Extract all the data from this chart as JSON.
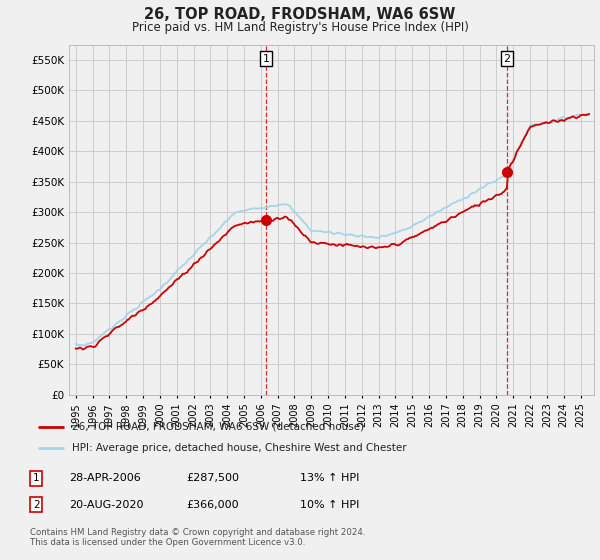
{
  "title": "26, TOP ROAD, FRODSHAM, WA6 6SW",
  "subtitle": "Price paid vs. HM Land Registry's House Price Index (HPI)",
  "legend_line1": "26, TOP ROAD, FRODSHAM, WA6 6SW (detached house)",
  "legend_line2": "HPI: Average price, detached house, Cheshire West and Chester",
  "annotation1_date": "28-APR-2006",
  "annotation1_price": "£287,500",
  "annotation1_hpi": "13% ↑ HPI",
  "annotation2_date": "20-AUG-2020",
  "annotation2_price": "£366,000",
  "annotation2_hpi": "10% ↑ HPI",
  "footnote": "Contains HM Land Registry data © Crown copyright and database right 2024.\nThis data is licensed under the Open Government Licence v3.0.",
  "ylim": [
    0,
    575000
  ],
  "yticks": [
    0,
    50000,
    100000,
    150000,
    200000,
    250000,
    300000,
    350000,
    400000,
    450000,
    500000,
    550000
  ],
  "xlim_start": 1994.6,
  "xlim_end": 2025.8,
  "hpi_color": "#a8d4e8",
  "price_color": "#cc0000",
  "background_color": "#f0f0f0",
  "grid_color": "#cccccc",
  "purchase1_x": 2006.32,
  "purchase1_y": 287500,
  "purchase2_x": 2020.63,
  "purchase2_y": 366000
}
